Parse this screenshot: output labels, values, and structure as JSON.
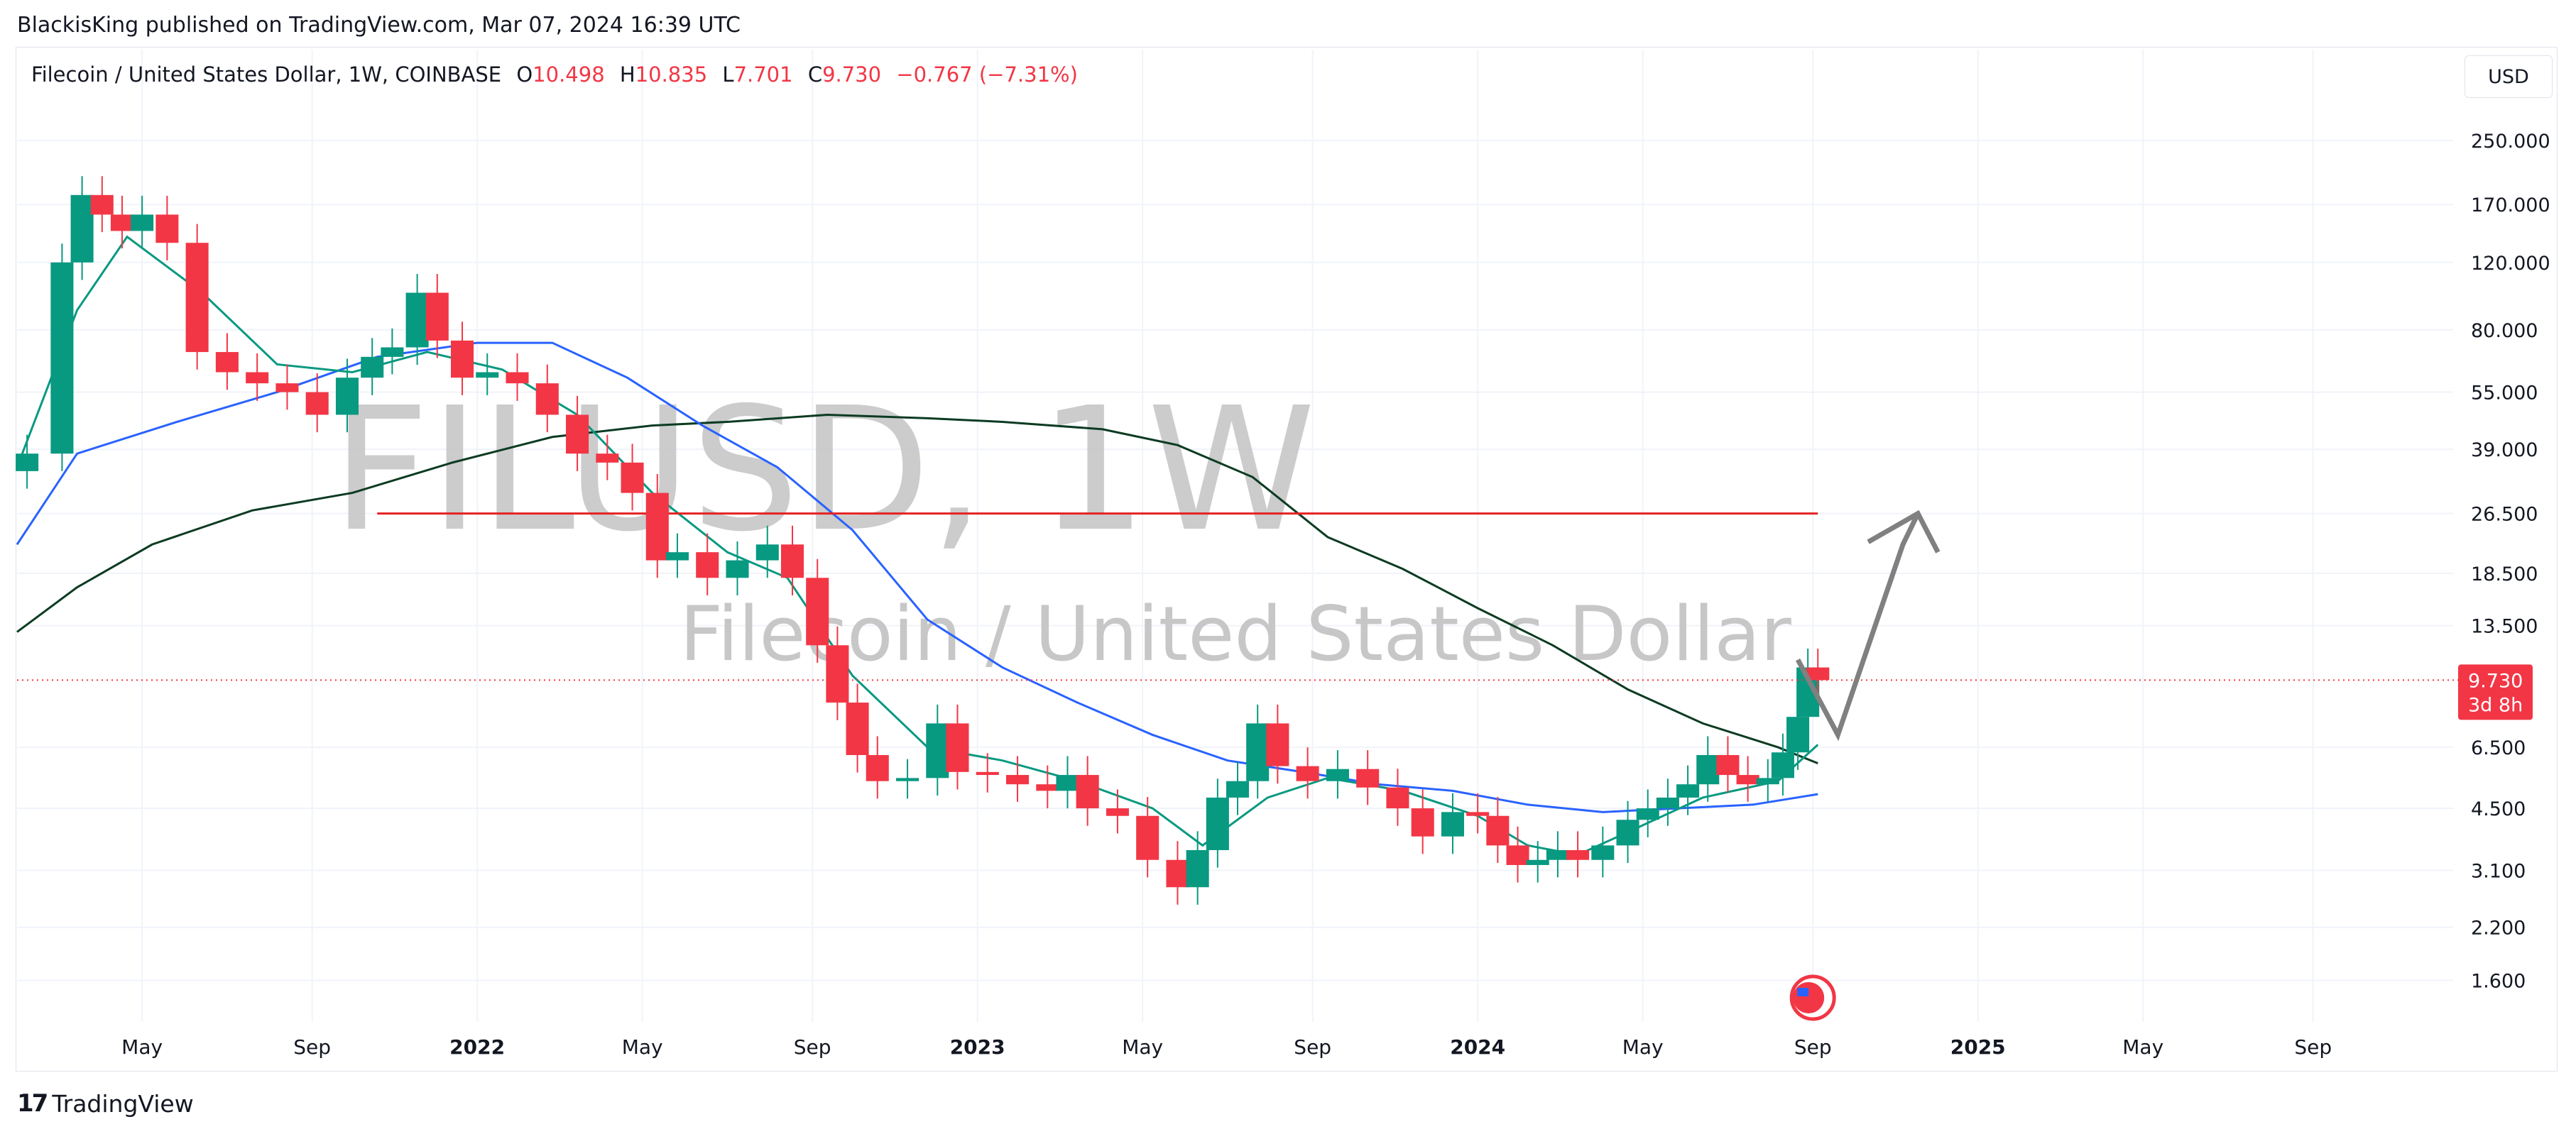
{
  "header": {
    "published": "BlackisKing published on TradingView.com, Mar 07, 2024 16:39 UTC"
  },
  "legend": {
    "symbol": "Filecoin / United States Dollar, 1W, COINBASE",
    "open_label": "O",
    "open": "10.498",
    "high_label": "H",
    "high": "10.835",
    "low_label": "L",
    "low": "7.701",
    "close_label": "C",
    "close": "9.730",
    "change": "−0.767 (−7.31%)"
  },
  "currency": "USD",
  "watermark": {
    "ticker": "FILUSD, 1W",
    "name": "Filecoin / United States Dollar"
  },
  "price_tag": {
    "price": "9.730",
    "countdown": "3d 8h",
    "color": "#f23645"
  },
  "footer": {
    "brand": "TradingView",
    "icon": "tradingview-logo-icon"
  },
  "events": {
    "icon": "us-flag-event-icon"
  },
  "colors": {
    "up": "#089981",
    "down": "#f23645",
    "ema_fast": "#089981",
    "ema_mid": "#2962ff",
    "ema_slow": "#0c3b22",
    "level": "#e52222",
    "drawing": "#808080"
  },
  "chart_data": {
    "type": "candlestick",
    "scale": "log",
    "ylim": [
      1.3,
      320
    ],
    "y_ticks": [
      "250.000",
      "170.000",
      "120.000",
      "80.000",
      "55.000",
      "39.000",
      "26.500",
      "18.500",
      "13.500",
      "9.730",
      "6.500",
      "4.500",
      "3.100",
      "2.200",
      "1.600"
    ],
    "x_ticks": [
      "May",
      "Sep",
      "2022",
      "May",
      "Sep",
      "2023",
      "May",
      "Sep",
      "2024",
      "May",
      "Sep",
      "2025",
      "May",
      "Sep"
    ],
    "bold_x_ticks": [
      "2022",
      "2023",
      "2024",
      "2025"
    ],
    "x_range_years": [
      2021.08,
      2025.95
    ],
    "close_series": [
      [
        2021.1,
        38
      ],
      [
        2021.17,
        120
      ],
      [
        2021.21,
        180
      ],
      [
        2021.25,
        160
      ],
      [
        2021.29,
        145
      ],
      [
        2021.33,
        160
      ],
      [
        2021.38,
        135
      ],
      [
        2021.44,
        70
      ],
      [
        2021.5,
        62
      ],
      [
        2021.56,
        58
      ],
      [
        2021.62,
        55
      ],
      [
        2021.68,
        48
      ],
      [
        2021.74,
        60
      ],
      [
        2021.79,
        68
      ],
      [
        2021.83,
        72
      ],
      [
        2021.88,
        100
      ],
      [
        2021.92,
        75
      ],
      [
        2021.97,
        60
      ],
      [
        2022.02,
        62
      ],
      [
        2022.08,
        58
      ],
      [
        2022.14,
        48
      ],
      [
        2022.2,
        38
      ],
      [
        2022.26,
        36
      ],
      [
        2022.31,
        30
      ],
      [
        2022.36,
        20
      ],
      [
        2022.4,
        21
      ],
      [
        2022.46,
        18
      ],
      [
        2022.52,
        20
      ],
      [
        2022.58,
        22
      ],
      [
        2022.63,
        18
      ],
      [
        2022.68,
        12
      ],
      [
        2022.72,
        8.5
      ],
      [
        2022.76,
        6.2
      ],
      [
        2022.8,
        5.3
      ],
      [
        2022.86,
        5.4
      ],
      [
        2022.92,
        7.5
      ],
      [
        2022.96,
        5.6
      ],
      [
        2023.02,
        5.5
      ],
      [
        2023.08,
        5.2
      ],
      [
        2023.14,
        5.0
      ],
      [
        2023.18,
        5.5
      ],
      [
        2023.22,
        4.5
      ],
      [
        2023.28,
        4.3
      ],
      [
        2023.34,
        3.3
      ],
      [
        2023.4,
        2.8
      ],
      [
        2023.44,
        3.5
      ],
      [
        2023.48,
        4.8
      ],
      [
        2023.52,
        5.3
      ],
      [
        2023.56,
        7.5
      ],
      [
        2023.6,
        5.8
      ],
      [
        2023.66,
        5.3
      ],
      [
        2023.72,
        5.7
      ],
      [
        2023.78,
        5.1
      ],
      [
        2023.84,
        4.5
      ],
      [
        2023.89,
        3.8
      ],
      [
        2023.95,
        4.4
      ],
      [
        2024.0,
        4.3
      ],
      [
        2024.04,
        3.6
      ],
      [
        2024.08,
        3.2
      ],
      [
        2024.12,
        3.3
      ],
      [
        2024.16,
        3.5
      ],
      [
        2024.2,
        3.3
      ],
      [
        2024.25,
        3.6
      ],
      [
        2024.3,
        4.2
      ],
      [
        2024.34,
        4.5
      ],
      [
        2024.38,
        4.8
      ],
      [
        2024.42,
        5.2
      ],
      [
        2024.46,
        6.2
      ],
      [
        2024.5,
        5.5
      ],
      [
        2024.54,
        5.2
      ],
      [
        2024.58,
        5.4
      ],
      [
        2024.61,
        6.3
      ],
      [
        2024.64,
        7.8
      ],
      [
        2024.66,
        10.5
      ],
      [
        2024.68,
        9.73
      ]
    ],
    "ema_fast": [
      [
        2021.08,
        35
      ],
      [
        2021.2,
        90
      ],
      [
        2021.3,
        140
      ],
      [
        2021.45,
        100
      ],
      [
        2021.6,
        65
      ],
      [
        2021.75,
        62
      ],
      [
        2021.9,
        70
      ],
      [
        2022.05,
        63
      ],
      [
        2022.2,
        48
      ],
      [
        2022.35,
        30
      ],
      [
        2022.5,
        21
      ],
      [
        2022.62,
        18
      ],
      [
        2022.75,
        10
      ],
      [
        2022.9,
        6.5
      ],
      [
        2023.05,
        6.0
      ],
      [
        2023.2,
        5.3
      ],
      [
        2023.35,
        4.5
      ],
      [
        2023.45,
        3.6
      ],
      [
        2023.58,
        4.8
      ],
      [
        2023.7,
        5.4
      ],
      [
        2023.85,
        5.0
      ],
      [
        2024.0,
        4.3
      ],
      [
        2024.1,
        3.6
      ],
      [
        2024.2,
        3.4
      ],
      [
        2024.3,
        3.9
      ],
      [
        2024.45,
        4.8
      ],
      [
        2024.6,
        5.3
      ],
      [
        2024.68,
        6.6
      ]
    ],
    "ema_mid": [
      [
        2021.08,
        22
      ],
      [
        2021.2,
        38
      ],
      [
        2021.4,
        46
      ],
      [
        2021.6,
        55
      ],
      [
        2021.8,
        68
      ],
      [
        2022.0,
        74
      ],
      [
        2022.15,
        74
      ],
      [
        2022.3,
        60
      ],
      [
        2022.45,
        45
      ],
      [
        2022.6,
        35
      ],
      [
        2022.75,
        24
      ],
      [
        2022.9,
        14
      ],
      [
        2023.05,
        10.5
      ],
      [
        2023.2,
        8.5
      ],
      [
        2023.35,
        7.0
      ],
      [
        2023.5,
        6.0
      ],
      [
        2023.65,
        5.6
      ],
      [
        2023.8,
        5.2
      ],
      [
        2023.95,
        5.0
      ],
      [
        2024.1,
        4.6
      ],
      [
        2024.25,
        4.4
      ],
      [
        2024.4,
        4.5
      ],
      [
        2024.55,
        4.6
      ],
      [
        2024.68,
        4.9
      ]
    ],
    "ema_slow": [
      [
        2021.08,
        13
      ],
      [
        2021.2,
        17
      ],
      [
        2021.35,
        22
      ],
      [
        2021.55,
        27
      ],
      [
        2021.75,
        30
      ],
      [
        2021.95,
        36
      ],
      [
        2022.15,
        42
      ],
      [
        2022.35,
        45
      ],
      [
        2022.5,
        46
      ],
      [
        2022.7,
        48
      ],
      [
        2022.9,
        47
      ],
      [
        2023.05,
        46
      ],
      [
        2023.25,
        44
      ],
      [
        2023.4,
        40
      ],
      [
        2023.55,
        33
      ],
      [
        2023.7,
        23
      ],
      [
        2023.85,
        19
      ],
      [
        2024.0,
        15
      ],
      [
        2024.15,
        12
      ],
      [
        2024.3,
        9.2
      ],
      [
        2024.45,
        7.5
      ],
      [
        2024.6,
        6.5
      ],
      [
        2024.68,
        5.9
      ]
    ],
    "level_line": {
      "value": 26.5,
      "x_from": 2021.8,
      "x_to": 2024.68
    },
    "projection_arrow": [
      [
        2024.64,
        11
      ],
      [
        2024.72,
        7.0
      ],
      [
        2024.85,
        22
      ],
      [
        2024.88,
        26.5
      ],
      [
        2024.92,
        21
      ]
    ]
  }
}
